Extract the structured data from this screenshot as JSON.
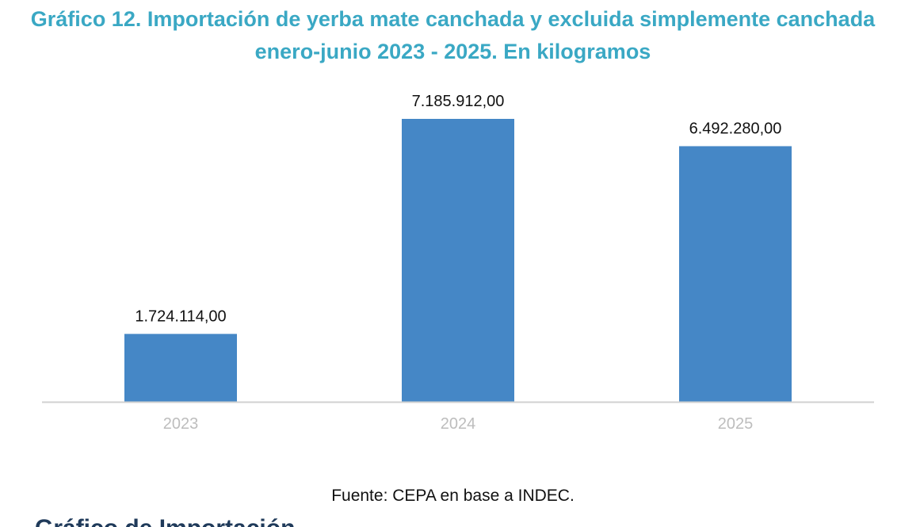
{
  "chart_data": {
    "type": "bar",
    "title": "Gráfico 12. Importación de yerba mate canchada y excluida simplemente canchada",
    "subtitle": "enero-junio 2023 - 2025. En kilogramos",
    "categories": [
      "2023",
      "2024",
      "2025"
    ],
    "values": [
      1724114.0,
      7185912.0,
      6492280.0
    ],
    "value_labels": [
      "1.724.114,00",
      "7.185.912,00",
      "6.492.280,00"
    ],
    "bar_color": "#4587c6",
    "axis_color": "#d0d0d0",
    "grid": false,
    "xlabel": "",
    "ylabel": ""
  },
  "source": "Fuente: CEPA en base a INDEC.",
  "next_section_heading": "Gráfico de Importación"
}
